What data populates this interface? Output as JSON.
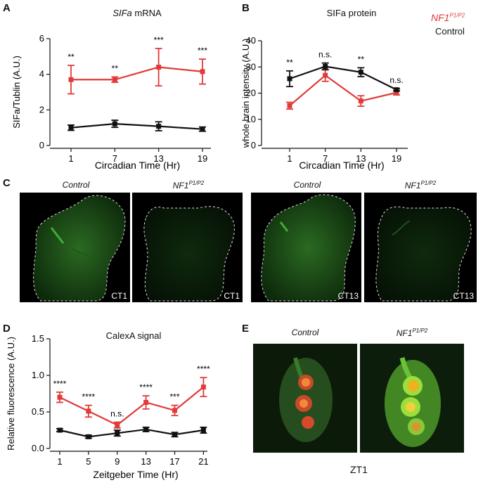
{
  "panels": {
    "A": {
      "letter": "A",
      "title_italic": "SIFa",
      "title_rest": " mRNA"
    },
    "B": {
      "letter": "B",
      "title": "SIFa protein"
    },
    "C": {
      "letter": "C"
    },
    "D": {
      "letter": "D",
      "title": "CalexA signal"
    },
    "E": {
      "letter": "E"
    }
  },
  "legend": {
    "mutant_base": "NF1",
    "mutant_sup": "P1/P2",
    "mutant_color": "#e23a3a",
    "control": "Control",
    "control_color": "#111111"
  },
  "micro_c": {
    "captions": [
      {
        "text": "Control",
        "sup": ""
      },
      {
        "text": "NF1",
        "sup": "P1/P2"
      },
      {
        "text": "Control",
        "sup": ""
      },
      {
        "text": "NF1",
        "sup": "P1/P2"
      }
    ],
    "tags": [
      "CT1",
      "CT1",
      "CT13",
      "CT13"
    ]
  },
  "micro_e": {
    "captions": [
      {
        "text": "Control",
        "sup": ""
      },
      {
        "text": "NF1",
        "sup": "P1/P2"
      }
    ],
    "footer": "ZT1"
  },
  "chart_data": [
    {
      "id": "A",
      "type": "line",
      "ylabel": "SIFa/Tublin (A.U.)",
      "xlabel": "Circadian Time (Hr)",
      "ylim": [
        0,
        6
      ],
      "yticks": [
        0,
        2,
        4,
        6
      ],
      "categories": [
        "1",
        "7",
        "13",
        "19"
      ],
      "series": [
        {
          "name": "NF1 P1/P2",
          "color": "#e23a3a",
          "values": [
            3.7,
            3.7,
            4.4,
            4.15
          ],
          "err": [
            0.8,
            0.15,
            1.05,
            0.7
          ]
        },
        {
          "name": "Control",
          "color": "#111111",
          "values": [
            1.0,
            1.22,
            1.08,
            0.92
          ],
          "err": [
            0.15,
            0.2,
            0.25,
            0.12
          ]
        }
      ],
      "significance": [
        "**",
        "**",
        "***",
        "***"
      ]
    },
    {
      "id": "B",
      "type": "line",
      "ylabel": "whole brain intensity (A.U.)",
      "xlabel": "Circadian Time (Hr)",
      "ylim": [
        0,
        40
      ],
      "yticks": [
        0,
        10,
        20,
        30,
        40
      ],
      "categories": [
        "1",
        "7",
        "13",
        "19"
      ],
      "series": [
        {
          "name": "NF1 P1/P2",
          "color": "#e23a3a",
          "values": [
            15.2,
            26.8,
            17.0,
            20.2
          ],
          "err": [
            1.3,
            2.3,
            2.0,
            0.9
          ]
        },
        {
          "name": "Control",
          "color": "#111111",
          "values": [
            25.5,
            30.2,
            28.0,
            21.3
          ],
          "err": [
            3.0,
            1.3,
            1.7,
            0.5
          ]
        }
      ],
      "significance": [
        "**",
        "n.s.",
        "**",
        "n.s."
      ]
    },
    {
      "id": "D",
      "type": "line",
      "ylabel": "Relative fluorescence (A.U.)",
      "xlabel": "Zeitgeber Time (Hr)",
      "ylim": [
        0,
        1.5
      ],
      "yticks": [
        "0.0",
        "0.5",
        "1.0",
        "1.5"
      ],
      "categories": [
        "1",
        "5",
        "9",
        "13",
        "17",
        "21"
      ],
      "series": [
        {
          "name": "NF1 P1/P2",
          "color": "#e23a3a",
          "values": [
            0.7,
            0.51,
            0.32,
            0.63,
            0.52,
            0.84
          ],
          "err": [
            0.07,
            0.08,
            0.04,
            0.09,
            0.07,
            0.13
          ]
        },
        {
          "name": "Control",
          "color": "#111111",
          "values": [
            0.25,
            0.16,
            0.21,
            0.26,
            0.19,
            0.25
          ],
          "err": [
            0.02,
            0.02,
            0.04,
            0.03,
            0.03,
            0.04
          ]
        }
      ],
      "significance": [
        "****",
        "****",
        "n.s.",
        "****",
        "***",
        "****"
      ]
    }
  ]
}
